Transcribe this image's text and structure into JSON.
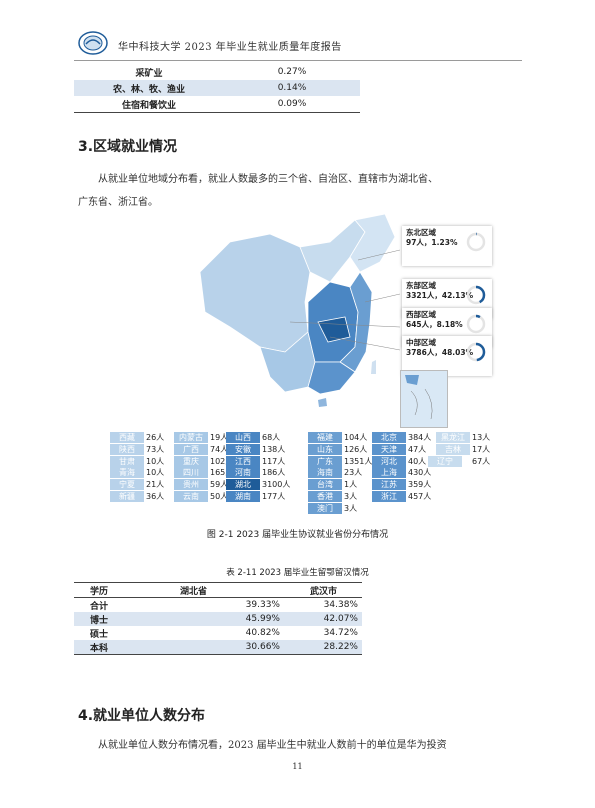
{
  "header": {
    "title": "华中科技大学 2023 年毕业生就业质量年度报告"
  },
  "top_table": {
    "rows": [
      {
        "name": "采矿业",
        "value": "0.27%"
      },
      {
        "name": "农、林、牧、渔业",
        "value": "0.14%"
      },
      {
        "name": "住宿和餐饮业",
        "value": "0.09%"
      }
    ]
  },
  "section3": {
    "heading": "3.区域就业情况",
    "para_line1": "从就业单位地域分布看，就业人数最多的三个省、自治区、直辖市为湖北省、",
    "para_line2": "广东省、浙江省。"
  },
  "regions": [
    {
      "name": "东北区域",
      "stat": "97人，1.23%",
      "pct": 1.23
    },
    {
      "name": "东部区域",
      "stat": "3321人，42.13%",
      "pct": 42.13
    },
    {
      "name": "西部区域",
      "stat": "645人，8.18%",
      "pct": 8.18
    },
    {
      "name": "中部区域",
      "stat": "3786人，48.03%",
      "pct": 48.03
    }
  ],
  "provinces": [
    {
      "name": "西藏",
      "count": "26人"
    },
    {
      "name": "陕西",
      "count": "73人"
    },
    {
      "name": "甘肃",
      "count": "10人"
    },
    {
      "name": "青海",
      "count": "10人"
    },
    {
      "name": "宁夏",
      "count": "21人"
    },
    {
      "name": "新疆",
      "count": "36人"
    },
    {
      "name": "内蒙古",
      "count": "19人"
    },
    {
      "name": "广西",
      "count": "74人"
    },
    {
      "name": "重庆",
      "count": "102人"
    },
    {
      "name": "四川",
      "count": "165人"
    },
    {
      "name": "贵州",
      "count": "59人"
    },
    {
      "name": "云南",
      "count": "50人"
    },
    {
      "name": "山西",
      "count": "68人"
    },
    {
      "name": "安徽",
      "count": "138人"
    },
    {
      "name": "江西",
      "count": "117人"
    },
    {
      "name": "河南",
      "count": "186人"
    },
    {
      "name": "湖北",
      "count": "3100人"
    },
    {
      "name": "湖南",
      "count": "177人"
    },
    {
      "name": "福建",
      "count": "104人"
    },
    {
      "name": "山东",
      "count": "126人"
    },
    {
      "name": "广东",
      "count": "1351人"
    },
    {
      "name": "海南",
      "count": "23人"
    },
    {
      "name": "台湾",
      "count": "1人"
    },
    {
      "name": "香港",
      "count": "3人"
    },
    {
      "name": "澳门",
      "count": "3人"
    },
    {
      "name": "北京",
      "count": "384人"
    },
    {
      "name": "天津",
      "count": "47人"
    },
    {
      "name": "河北",
      "count": "40人"
    },
    {
      "name": "上海",
      "count": "430人"
    },
    {
      "name": "江苏",
      "count": "359人"
    },
    {
      "name": "浙江",
      "count": "457人"
    },
    {
      "name": "黑龙江",
      "count": "13人"
    },
    {
      "name": "吉林",
      "count": "17人"
    },
    {
      "name": "辽宁",
      "count": "67人"
    }
  ],
  "figure_caption": "图  2-1      2023 届毕业生协议就业省份分布情况",
  "table2": {
    "caption": "表  2-11      2023 届毕业生留鄂留汉情况",
    "headers": [
      "学历",
      "湖北省",
      "武汉市"
    ],
    "rows": [
      [
        "合计",
        "39.33%",
        "34.38%"
      ],
      [
        "博士",
        "45.99%",
        "42.07%"
      ],
      [
        "硕士",
        "40.82%",
        "34.72%"
      ],
      [
        "本科",
        "30.66%",
        "28.22%"
      ]
    ]
  },
  "section4": {
    "heading": "4.就业单位人数分布",
    "para_line1": "从就业单位人数分布情况看，2023 届毕业生中就业人数前十的单位是华为投资"
  },
  "page_number": "11",
  "colors": {
    "accent": "#1f5c99",
    "shade": "#dbe5f1"
  }
}
